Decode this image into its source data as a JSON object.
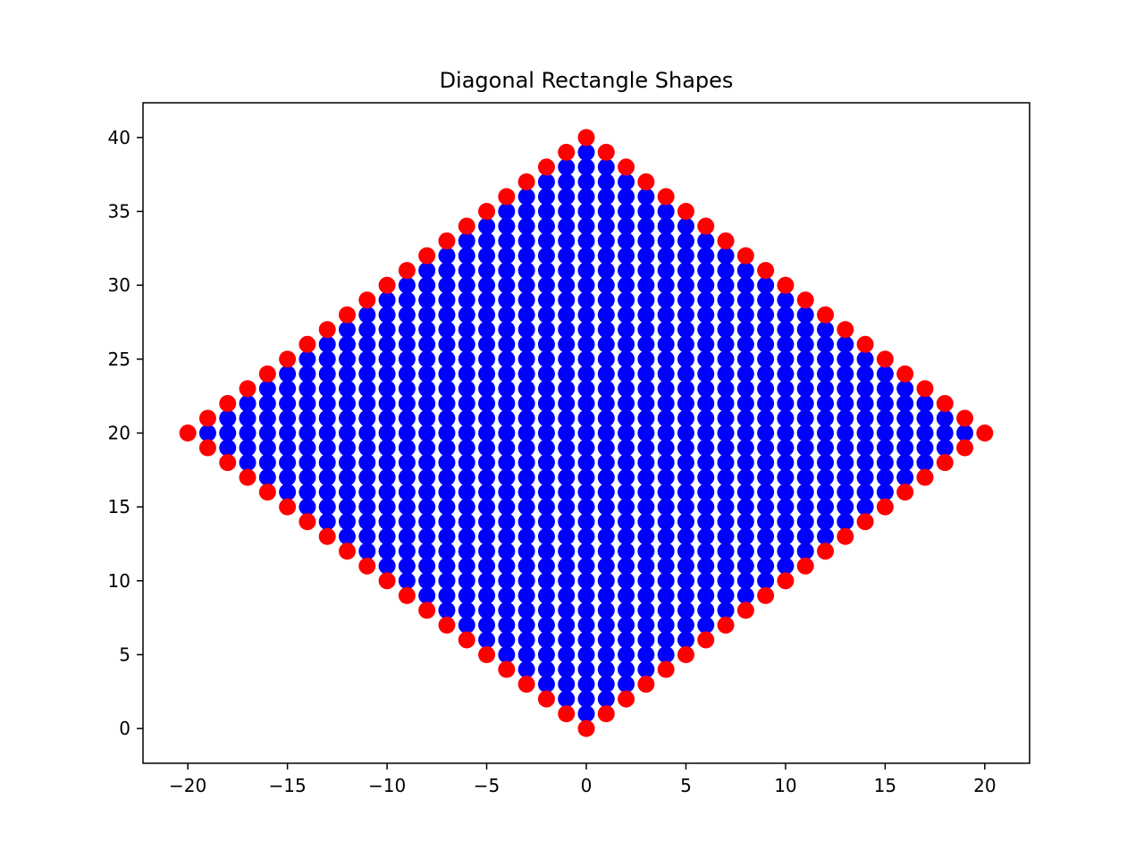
{
  "chart_data": {
    "type": "scatter",
    "title": "Diagonal Rectangle Shapes",
    "xlabel": "",
    "ylabel": "",
    "xlim": [
      -22.25,
      22.25
    ],
    "ylim": [
      -2.35,
      42.35
    ],
    "xticks": [
      -20,
      -15,
      -10,
      -5,
      0,
      5,
      10,
      15,
      20
    ],
    "yticks": [
      0,
      5,
      10,
      15,
      20,
      25,
      30,
      35,
      40
    ],
    "grid": false,
    "legend": "none",
    "series": [
      {
        "role": "interior",
        "color": "#0000ff",
        "rule": "all integer points (x, y) with |x| + |y - 20| < 20",
        "points": []
      },
      {
        "role": "boundary",
        "color": "#ff0000",
        "rule": "all integer points (x, y) with |x| + |y - 20| = 20",
        "points": [
          [
            0,
            40
          ],
          [
            1,
            39
          ],
          [
            2,
            38
          ],
          [
            3,
            37
          ],
          [
            4,
            36
          ],
          [
            5,
            35
          ],
          [
            6,
            34
          ],
          [
            7,
            33
          ],
          [
            8,
            32
          ],
          [
            9,
            31
          ],
          [
            10,
            30
          ],
          [
            11,
            29
          ],
          [
            12,
            28
          ],
          [
            13,
            27
          ],
          [
            14,
            26
          ],
          [
            15,
            25
          ],
          [
            16,
            24
          ],
          [
            17,
            23
          ],
          [
            18,
            22
          ],
          [
            19,
            21
          ],
          [
            20,
            20
          ],
          [
            19,
            19
          ],
          [
            18,
            18
          ],
          [
            17,
            17
          ],
          [
            16,
            16
          ],
          [
            15,
            15
          ],
          [
            14,
            14
          ],
          [
            13,
            13
          ],
          [
            12,
            12
          ],
          [
            11,
            11
          ],
          [
            10,
            10
          ],
          [
            9,
            9
          ],
          [
            8,
            8
          ],
          [
            7,
            7
          ],
          [
            6,
            6
          ],
          [
            5,
            5
          ],
          [
            4,
            4
          ],
          [
            3,
            3
          ],
          [
            2,
            2
          ],
          [
            1,
            1
          ],
          [
            0,
            0
          ],
          [
            -1,
            1
          ],
          [
            -2,
            2
          ],
          [
            -3,
            3
          ],
          [
            -4,
            4
          ],
          [
            -5,
            5
          ],
          [
            -6,
            6
          ],
          [
            -7,
            7
          ],
          [
            -8,
            8
          ],
          [
            -9,
            9
          ],
          [
            -10,
            10
          ],
          [
            -11,
            11
          ],
          [
            -12,
            12
          ],
          [
            -13,
            13
          ],
          [
            -14,
            14
          ],
          [
            -15,
            15
          ],
          [
            -16,
            16
          ],
          [
            -17,
            17
          ],
          [
            -18,
            18
          ],
          [
            -19,
            19
          ],
          [
            -20,
            20
          ],
          [
            -19,
            21
          ],
          [
            -18,
            22
          ],
          [
            -17,
            23
          ],
          [
            -16,
            24
          ],
          [
            -15,
            25
          ],
          [
            -14,
            26
          ],
          [
            -13,
            27
          ],
          [
            -12,
            28
          ],
          [
            -11,
            29
          ],
          [
            -10,
            30
          ],
          [
            -9,
            31
          ],
          [
            -8,
            32
          ],
          [
            -7,
            33
          ],
          [
            -6,
            34
          ],
          [
            -5,
            35
          ],
          [
            -4,
            36
          ],
          [
            -3,
            37
          ],
          [
            -2,
            38
          ],
          [
            -1,
            39
          ]
        ]
      }
    ]
  }
}
